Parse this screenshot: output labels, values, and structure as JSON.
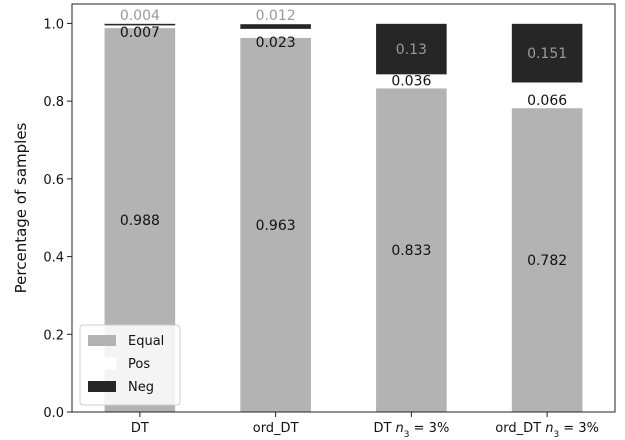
{
  "chart_data": {
    "type": "bar",
    "stacked": true,
    "categories": [
      "DT",
      "ord_DT",
      "DT n3 = 3%",
      "ord_DT n3 = 3%"
    ],
    "category_labels": [
      {
        "text": "DT"
      },
      {
        "text": "ord_DT"
      },
      {
        "text": "DT ",
        "italic": "n",
        "sub": "3",
        "tail": " = 3%"
      },
      {
        "text": "ord_DT ",
        "italic": "n",
        "sub": "3",
        "tail": " = 3%"
      }
    ],
    "series": [
      {
        "name": "Equal",
        "color": "#b3b3b3",
        "label_color": "#111111",
        "values": [
          0.988,
          0.963,
          0.833,
          0.782
        ],
        "labels": [
          "0.988",
          "0.963",
          "0.833",
          "0.782"
        ]
      },
      {
        "name": "Pos",
        "color": "#ffffff",
        "label_color": "#111111",
        "values": [
          0.007,
          0.023,
          0.036,
          0.066
        ],
        "labels": [
          "0.007",
          "0.023",
          "0.036",
          "0.066"
        ]
      },
      {
        "name": "Neg",
        "color": "#262626",
        "label_color": "#9a9a9a",
        "values": [
          0.004,
          0.012,
          0.13,
          0.151
        ],
        "labels": [
          "0.004",
          "0.012",
          "0.13",
          "0.151"
        ]
      }
    ],
    "ylabel": "Percentage of samples",
    "xlabel": "",
    "ylim": [
      0,
      1.05
    ],
    "yticks": [
      0.0,
      0.2,
      0.4,
      0.6,
      0.8,
      1.0
    ],
    "ytick_labels": [
      "0.0",
      "0.2",
      "0.4",
      "0.6",
      "0.8",
      "1.0"
    ],
    "grid": false,
    "legend_position": "bottom-left"
  }
}
